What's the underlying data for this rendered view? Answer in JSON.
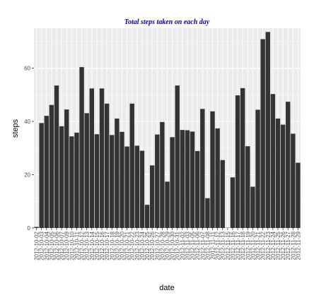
{
  "chart_data": {
    "type": "bar",
    "title": "Total steps taken on each day",
    "xlabel": "date",
    "ylabel": "steps",
    "ylim": [
      0,
      75
    ],
    "yticks": [
      0,
      20,
      40,
      60
    ],
    "grid": true,
    "colors": {
      "panel": "#ebebeb",
      "grid": "#ffffff",
      "bar": "#333333",
      "title": "#0000cc",
      "tick_text": "#4d4d4d"
    },
    "categories": [
      "2012-10-02",
      "2012-10-03",
      "2012-10-04",
      "2012-10-05",
      "2012-10-06",
      "2012-10-07",
      "2012-10-09",
      "2012-10-10",
      "2012-10-11",
      "2012-10-12",
      "2012-10-13",
      "2012-10-14",
      "2012-10-15",
      "2012-10-16",
      "2012-10-17",
      "2012-10-18",
      "2012-10-19",
      "2012-10-20",
      "2012-10-21",
      "2012-10-22",
      "2012-10-23",
      "2012-10-24",
      "2012-10-25",
      "2012-10-26",
      "2012-10-27",
      "2012-10-28",
      "2012-10-29",
      "2012-10-30",
      "2012-10-31",
      "2012-11-02",
      "2012-11-03",
      "2012-11-05",
      "2012-11-06",
      "2012-11-07",
      "2012-11-08",
      "2012-11-11",
      "2012-11-12",
      "2012-11-13",
      "2012-11-15",
      "2012-11-16",
      "2012-11-17",
      "2012-11-18",
      "2012-11-19",
      "2012-11-20",
      "2012-11-21",
      "2012-11-22",
      "2012-11-23",
      "2012-11-24",
      "2012-11-25",
      "2012-11-26",
      "2012-11-27",
      "2012-11-28",
      "2012-11-29"
    ],
    "values": [
      0.4,
      39.4,
      42.1,
      46.2,
      53.5,
      38.2,
      44.5,
      34.4,
      35.8,
      60.4,
      43.1,
      52.4,
      35.2,
      52.4,
      46.7,
      34.9,
      41.1,
      36.1,
      30.6,
      46.7,
      30.9,
      29.0,
      8.7,
      23.5,
      35.1,
      39.8,
      17.4,
      34.1,
      53.5,
      36.8,
      36.7,
      36.2,
      28.9,
      44.7,
      11.2,
      43.8,
      37.4,
      25.5,
      0.1,
      19.0,
      49.8,
      52.5,
      30.7,
      15.5,
      44.4,
      70.9,
      73.6,
      50.3,
      41.1,
      38.8,
      47.4,
      35.4,
      24.5
    ]
  }
}
